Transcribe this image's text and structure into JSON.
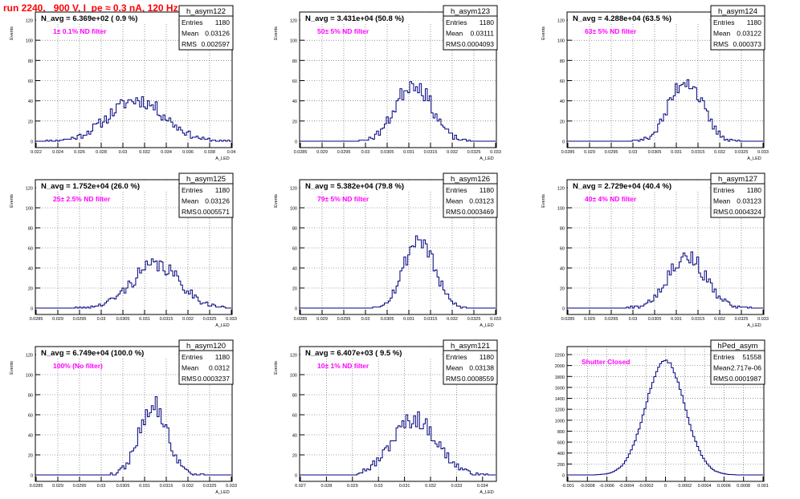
{
  "run_title": "run 2240,   900 V, I_pe ≈ 0.3 nA, 120 Hz",
  "colors": {
    "histogram": "#000080",
    "frame": "#000000",
    "grid": "#555555",
    "title_red": "#ff0000",
    "annotation_magenta": "#ff00ff"
  },
  "chart_data": [
    {
      "type": "bar",
      "name": "h_asym122",
      "ylabel": "Events",
      "xlabel": "A_LED",
      "xlim": [
        0.022,
        0.04
      ],
      "ylim": [
        0,
        120
      ],
      "grid": true,
      "xticks": [
        "0.022",
        "0.024",
        "0.026",
        "0.028",
        "0.03",
        "0.032",
        "0.034",
        "0.036",
        "0.038",
        "0.04"
      ],
      "yticks": [
        "0",
        "20",
        "40",
        "60",
        "80",
        "100",
        "120"
      ],
      "nbins": 100,
      "mean": 0.03126,
      "rms": 0.002597,
      "entries": 1180,
      "peak": 41,
      "seed": 11,
      "navg": "N_avg = 6.369e+02 ( 0.9 %)",
      "filter": "1± 0.1% ND filter",
      "stats": {
        "entries_label": "Entries",
        "entries": "1180",
        "mean_label": "Mean",
        "mean": "0.03126",
        "rms_label": "RMS",
        "rms": "0.002597"
      }
    },
    {
      "type": "bar",
      "name": "h_asym123",
      "ylabel": "Events",
      "xlabel": "A_LED",
      "xlim": [
        0.0285,
        0.033
      ],
      "ylim": [
        0,
        120
      ],
      "grid": true,
      "xticks": [
        "0.0285",
        "0.029",
        "0.0295",
        "0.03",
        "0.0305",
        "0.031",
        "0.0315",
        "0.032",
        "0.0325",
        "0.033"
      ],
      "yticks": [
        "0",
        "20",
        "40",
        "60",
        "80",
        "100",
        "120"
      ],
      "nbins": 100,
      "mean": 0.03111,
      "rms": 0.0004093,
      "entries": 1180,
      "peak": 58,
      "seed": 23,
      "navg": "N_avg = 3.431e+04 (50.8 %)",
      "filter": "50± 5% ND filter",
      "stats": {
        "entries_label": "Entries",
        "entries": "1180",
        "mean_label": "Mean",
        "mean": "0.03111",
        "rms_label": "RMS",
        "rms": "0.0004093"
      }
    },
    {
      "type": "bar",
      "name": "h_asym124",
      "ylabel": "Events",
      "xlabel": "A_LED",
      "xlim": [
        0.0285,
        0.033
      ],
      "ylim": [
        0,
        120
      ],
      "grid": true,
      "xticks": [
        "0.0285",
        "0.029",
        "0.0295",
        "0.03",
        "0.0305",
        "0.031",
        "0.0315",
        "0.032",
        "0.0325",
        "0.033"
      ],
      "yticks": [
        "0",
        "20",
        "40",
        "60",
        "80",
        "100",
        "120"
      ],
      "nbins": 100,
      "mean": 0.03122,
      "rms": 0.000373,
      "entries": 1180,
      "peak": 61,
      "seed": 37,
      "navg": "N_avg = 4.288e+04 (63.5 %)",
      "filter": "63± 5% ND filter",
      "stats": {
        "entries_label": "Entries",
        "entries": "1180",
        "mean_label": "Mean",
        "mean": "0.03122",
        "rms_label": "RMS",
        "rms": "0.000373"
      }
    },
    {
      "type": "bar",
      "name": "h_asym125",
      "ylabel": "Events",
      "xlabel": "A_LED",
      "xlim": [
        0.0285,
        0.033
      ],
      "ylim": [
        0,
        120
      ],
      "grid": true,
      "xticks": [
        "0.0285",
        "0.029",
        "0.0295",
        "0.03",
        "0.0305",
        "0.031",
        "0.0315",
        "0.032",
        "0.0325",
        "0.033"
      ],
      "yticks": [
        "0",
        "20",
        "40",
        "60",
        "80",
        "100",
        "120"
      ],
      "nbins": 100,
      "mean": 0.03126,
      "rms": 0.0005571,
      "entries": 1180,
      "peak": 43,
      "seed": 41,
      "navg": "N_avg = 1.752e+04 (26.0 %)",
      "filter": "25± 2.5% ND filter",
      "stats": {
        "entries_label": "Entries",
        "entries": "1180",
        "mean_label": "Mean",
        "mean": "0.03126",
        "rms_label": "RMS",
        "rms": "0.0005571"
      }
    },
    {
      "type": "bar",
      "name": "h_asym126",
      "ylabel": "Events",
      "xlabel": "A_LED",
      "xlim": [
        0.0285,
        0.033
      ],
      "ylim": [
        0,
        120
      ],
      "grid": true,
      "xticks": [
        "0.0285",
        "0.029",
        "0.0295",
        "0.03",
        "0.0305",
        "0.031",
        "0.0315",
        "0.032",
        "0.0325",
        "0.033"
      ],
      "yticks": [
        "0",
        "20",
        "40",
        "60",
        "80",
        "100",
        "120"
      ],
      "nbins": 100,
      "mean": 0.03123,
      "rms": 0.0003469,
      "entries": 1180,
      "peak": 69,
      "seed": 53,
      "navg": "N_avg = 5.382e+04 (79.8 %)",
      "filter": "79± 5% ND filter",
      "stats": {
        "entries_label": "Entries",
        "entries": "1180",
        "mean_label": "Mean",
        "mean": "0.03123",
        "rms_label": "RMS",
        "rms": "0.0003469"
      }
    },
    {
      "type": "bar",
      "name": "h_asym127",
      "ylabel": "Events",
      "xlabel": "A_LED",
      "xlim": [
        0.0285,
        0.033
      ],
      "ylim": [
        0,
        120
      ],
      "grid": true,
      "xticks": [
        "0.0285",
        "0.029",
        "0.0295",
        "0.03",
        "0.0305",
        "0.031",
        "0.0315",
        "0.032",
        "0.0325",
        "0.033"
      ],
      "yticks": [
        "0",
        "20",
        "40",
        "60",
        "80",
        "100",
        "120"
      ],
      "nbins": 100,
      "mean": 0.03123,
      "rms": 0.0004324,
      "entries": 1180,
      "peak": 52,
      "seed": 67,
      "navg": "N_avg = 2.729e+04 (40.4 %)",
      "filter": "40± 4% ND filter",
      "stats": {
        "entries_label": "Entries",
        "entries": "1180",
        "mean_label": "Mean",
        "mean": "0.03123",
        "rms_label": "RMS",
        "rms": "0.0004324"
      }
    },
    {
      "type": "bar",
      "name": "h_asym120",
      "ylabel": "Events",
      "xlabel": "A_LED",
      "xlim": [
        0.0285,
        0.033
      ],
      "ylim": [
        0,
        120
      ],
      "grid": true,
      "xticks": [
        "0.0285",
        "0.029",
        "0.0295",
        "0.03",
        "0.0305",
        "0.031",
        "0.0315",
        "0.032",
        "0.0325",
        "0.033"
      ],
      "yticks": [
        "0",
        "20",
        "40",
        "60",
        "80",
        "100",
        "120"
      ],
      "nbins": 100,
      "mean": 0.0312,
      "rms": 0.0003237,
      "entries": 1180,
      "peak": 70,
      "seed": 79,
      "navg": "N_avg = 6.749e+04 (100.0 %)",
      "filter": "100% (No filter)",
      "stats": {
        "entries_label": "Entries",
        "entries": "1180",
        "mean_label": "Mean",
        "mean": "0.0312",
        "rms_label": "RMS",
        "rms": "0.0003237"
      }
    },
    {
      "type": "bar",
      "name": "h_asym121",
      "ylabel": "Events",
      "xlabel": "A_LED",
      "xlim": [
        0.027,
        0.0345
      ],
      "ylim": [
        0,
        120
      ],
      "grid": true,
      "xticks": [
        "0.027",
        "0.028",
        "0.029",
        "0.03",
        "0.031",
        "0.032",
        "0.033",
        "0.034"
      ],
      "yticks": [
        "0",
        "20",
        "40",
        "60",
        "80",
        "100",
        "120"
      ],
      "nbins": 100,
      "mean": 0.03138,
      "rms": 0.0008559,
      "entries": 1180,
      "peak": 56,
      "seed": 97,
      "navg": "N_avg = 6.407e+03 ( 9.5 %)",
      "filter": "10± 1% ND filter",
      "stats": {
        "entries_label": "Entries",
        "entries": "1180",
        "mean_label": "Mean",
        "mean": "0.03138",
        "rms_label": "RMS",
        "rms": "0.0008559"
      }
    },
    {
      "type": "bar",
      "name": "hPed_asym",
      "ylabel": "",
      "xlabel": "",
      "xlim": [
        -0.001,
        0.001
      ],
      "ylim": [
        0,
        2200
      ],
      "grid": true,
      "xticks": [
        "-0.001",
        "-0.0008",
        "-0.0006",
        "-0.0004",
        "-0.0002",
        "0",
        "0.0002",
        "0.0004",
        "0.0006",
        "0.0008",
        "0.001"
      ],
      "yticks": [
        "0",
        "200",
        "400",
        "600",
        "800",
        "1000",
        "1200",
        "1400",
        "1600",
        "1800",
        "2000",
        "2200"
      ],
      "nbins": 100,
      "mean": -2.717e-06,
      "rms": 0.0001987,
      "entries": 51558,
      "peak": 2100,
      "seed": 101,
      "navg": "",
      "filter": "Shutter Closed",
      "stats": {
        "entries_label": "Entries",
        "entries": "51558",
        "mean_label": "Mean",
        "mean": "-2.717e-06",
        "rms_label": "RMS",
        "rms": "0.0001987"
      }
    }
  ]
}
